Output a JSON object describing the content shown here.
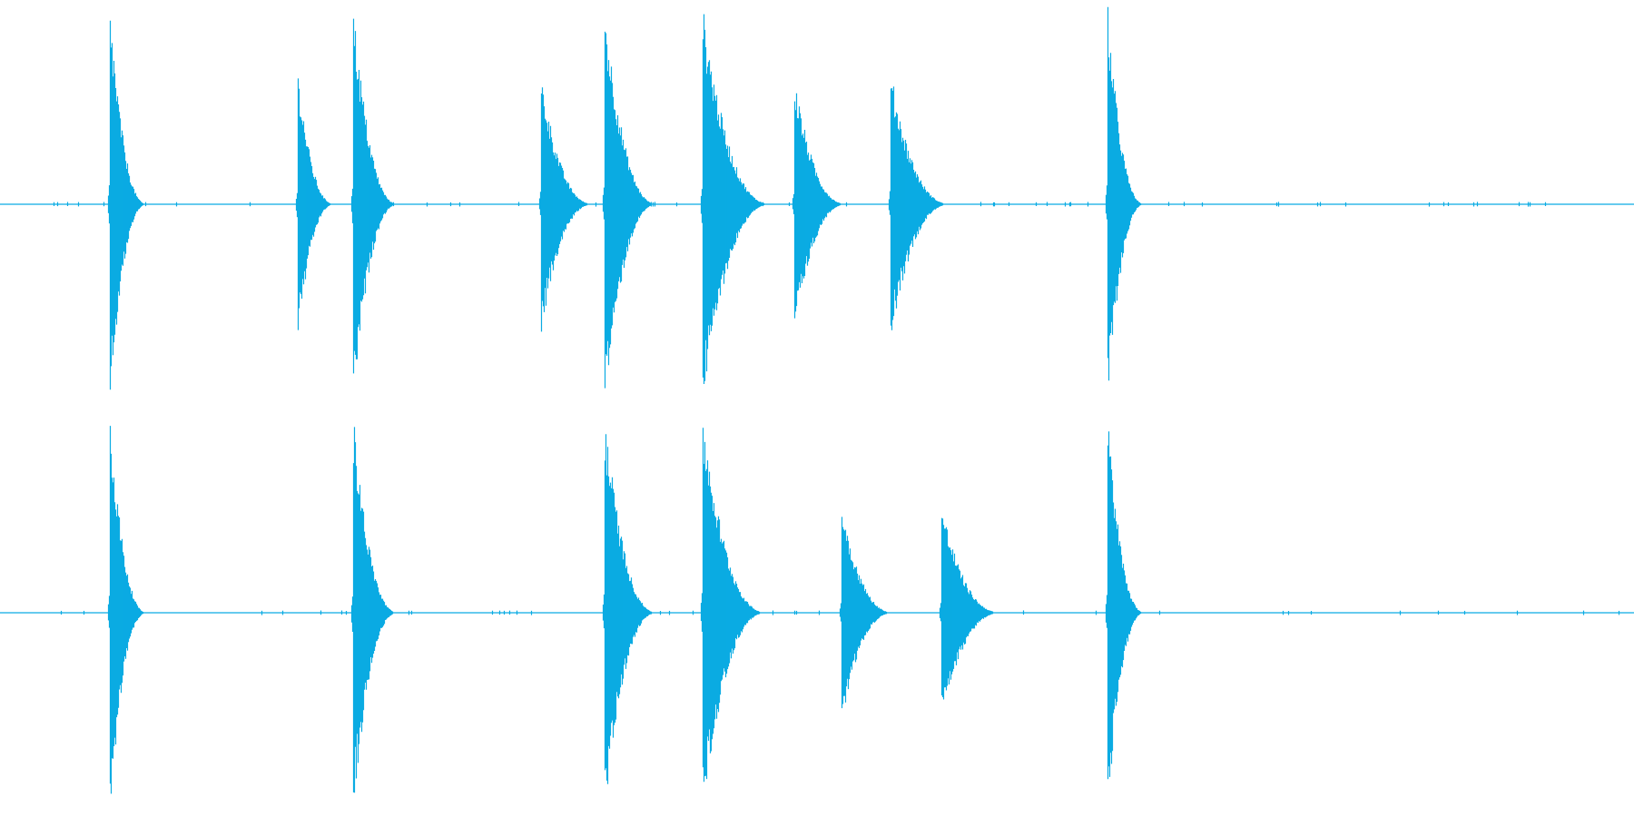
{
  "waveform": {
    "color": "#0aabe3",
    "background": "#ffffff",
    "channels": [
      {
        "name": "",
        "transients": [
          {
            "time": 0.067,
            "peak": 1.0,
            "decay": 0.35
          },
          {
            "time": 0.182,
            "peak": 0.67,
            "decay": 0.35
          },
          {
            "time": 0.216,
            "peak": 1.0,
            "decay": 0.45
          },
          {
            "time": 0.331,
            "peak": 0.65,
            "decay": 0.55
          },
          {
            "time": 0.37,
            "peak": 1.0,
            "decay": 0.55
          },
          {
            "time": 0.43,
            "peak": 1.0,
            "decay": 0.75
          },
          {
            "time": 0.486,
            "peak": 0.64,
            "decay": 0.55
          },
          {
            "time": 0.545,
            "peak": 0.67,
            "decay": 0.65
          },
          {
            "time": 0.678,
            "peak": 1.0,
            "decay": 0.35
          }
        ]
      },
      {
        "name": "",
        "transients": [
          {
            "time": 0.067,
            "peak": 1.0,
            "decay": 0.35
          },
          {
            "time": 0.216,
            "peak": 1.0,
            "decay": 0.45
          },
          {
            "time": 0.37,
            "peak": 1.0,
            "decay": 0.55
          },
          {
            "time": 0.43,
            "peak": 1.0,
            "decay": 0.7
          },
          {
            "time": 0.515,
            "peak": 0.55,
            "decay": 0.55
          },
          {
            "time": 0.576,
            "peak": 0.55,
            "decay": 0.65
          },
          {
            "time": 0.678,
            "peak": 1.0,
            "decay": 0.35
          }
        ]
      }
    ]
  }
}
